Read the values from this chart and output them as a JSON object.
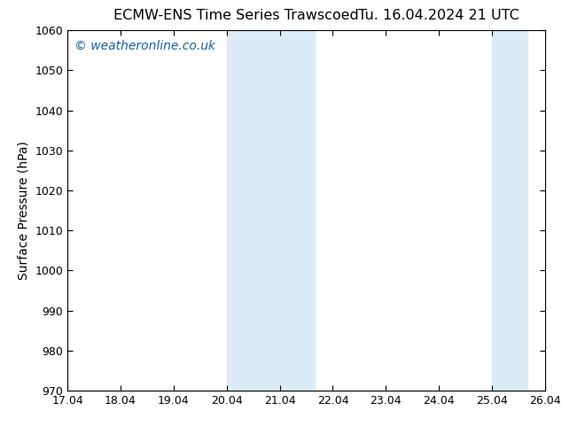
{
  "title_left": "ECMW-ENS Time Series Trawscoed",
  "title_right": "Tu. 16.04.2024 21 UTC",
  "ylabel": "Surface Pressure (hPa)",
  "xlim": [
    17.04,
    26.04
  ],
  "ylim": [
    970,
    1060
  ],
  "xticks": [
    17.04,
    18.04,
    19.04,
    20.04,
    21.04,
    22.04,
    23.04,
    24.04,
    25.04,
    26.04
  ],
  "xtick_labels": [
    "17.04",
    "18.04",
    "19.04",
    "20.04",
    "21.04",
    "22.04",
    "23.04",
    "24.04",
    "25.04",
    "26.04"
  ],
  "yticks": [
    970,
    980,
    990,
    1000,
    1010,
    1020,
    1030,
    1040,
    1050,
    1060
  ],
  "shaded_regions": [
    {
      "xmin": 20.04,
      "xmax": 21.7
    },
    {
      "xmin": 25.04,
      "xmax": 25.71
    }
  ],
  "shaded_color": "#daeaf7",
  "bg_color": "#ffffff",
  "watermark_text": "© weatheronline.co.uk",
  "watermark_color": "#1a5fa8",
  "title_fontsize": 11.5,
  "axis_fontsize": 10,
  "tick_fontsize": 9,
  "watermark_fontsize": 10
}
